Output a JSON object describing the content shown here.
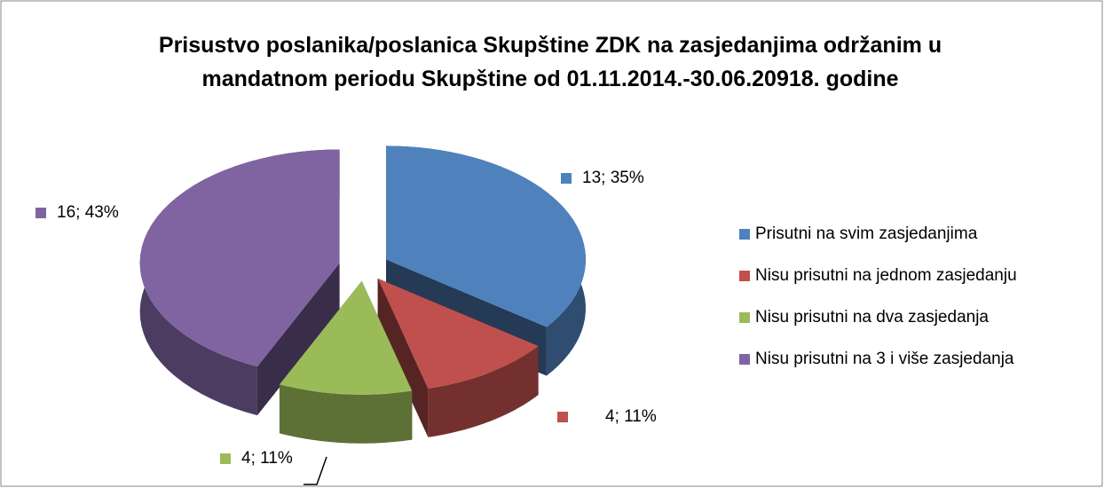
{
  "chart_data": {
    "type": "pie3d",
    "title": "Prisustvo poslanika/poslanica Skupštine ZDK na zasjedanjima održanim u mandatnom periodu Skupštine od 01.11.2014.-30.06.20918. godine",
    "categories": [
      "Prisutni na svim zasjedanjima",
      "Nisu prisutni na jednom zasjedanju",
      "Nisu prisutni na dva zasjedanja",
      "Nisu prisutni na 3 i više zasjedanja"
    ],
    "values": [
      13,
      4,
      4,
      16
    ],
    "value_labels": [
      "13; 35%",
      "4; 11%",
      "4; 11%",
      "16; 43%"
    ],
    "colors": [
      "#4f81bd",
      "#c0504d",
      "#9bbb59",
      "#8064a2"
    ],
    "legend": "right"
  }
}
